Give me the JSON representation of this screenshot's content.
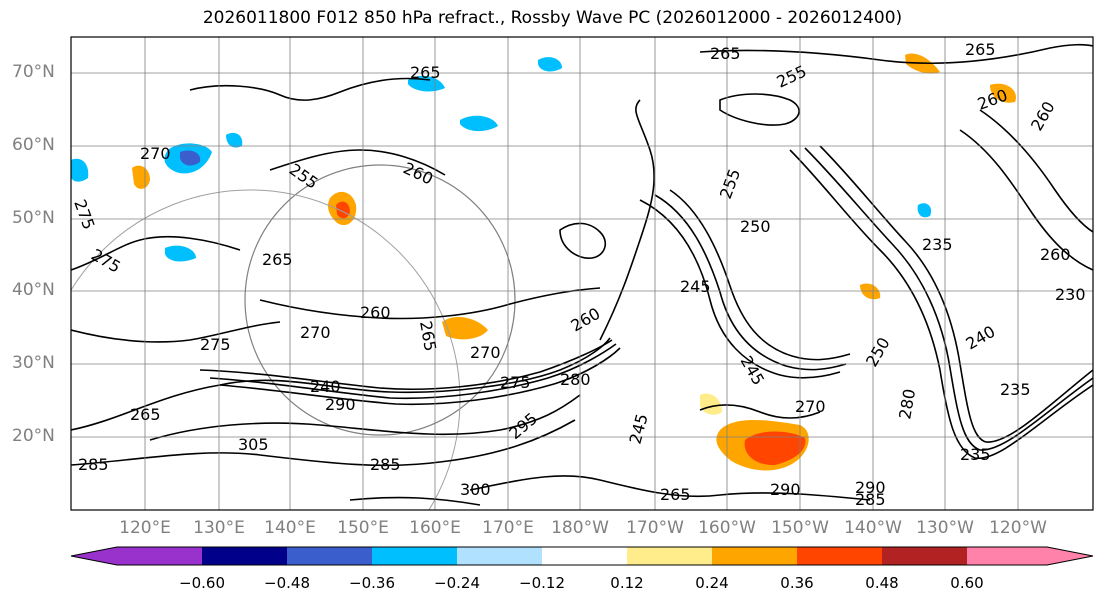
{
  "title": "2026011800 F012 850 hPa refract., Rossby Wave PC (2026012000 - 2026012400)",
  "lat_labels": [
    "70°N",
    "60°N",
    "50°N",
    "40°N",
    "30°N",
    "20°N"
  ],
  "lon_labels": [
    "120°E",
    "130°E",
    "140°E",
    "150°E",
    "160°E",
    "170°E",
    "180°W",
    "170°W",
    "160°W",
    "150°W",
    "140°W",
    "130°W",
    "120°W"
  ],
  "colorbar": {
    "ticks": [
      "−0.60",
      "−0.48",
      "−0.36",
      "−0.24",
      "−0.12",
      "0.12",
      "0.24",
      "0.36",
      "0.48",
      "0.60"
    ],
    "colors": [
      "#9932cc",
      "#00008b",
      "#3a5fcd",
      "#00bfff",
      "#b0e2ff",
      "#ffffff",
      "#ffec8b",
      "#ffa500",
      "#ff4500",
      "#b22222",
      "#ff82ab"
    ]
  },
  "contour_labels": [
    "265",
    "265",
    "255",
    "265",
    "260",
    "270",
    "255",
    "260",
    "275",
    "265",
    "260",
    "270",
    "265",
    "275",
    "240",
    "245",
    "250",
    "255",
    "260",
    "265",
    "270",
    "275",
    "280",
    "285",
    "290",
    "295",
    "300",
    "305",
    "260",
    "240",
    "245",
    "250",
    "270",
    "280",
    "290",
    "285",
    "290",
    "260",
    "235",
    "235",
    "275",
    "285",
    "265",
    "235",
    "230",
    "245"
  ],
  "colors": {
    "contour": "#000000",
    "grid": "#808080",
    "frame": "#000000"
  }
}
